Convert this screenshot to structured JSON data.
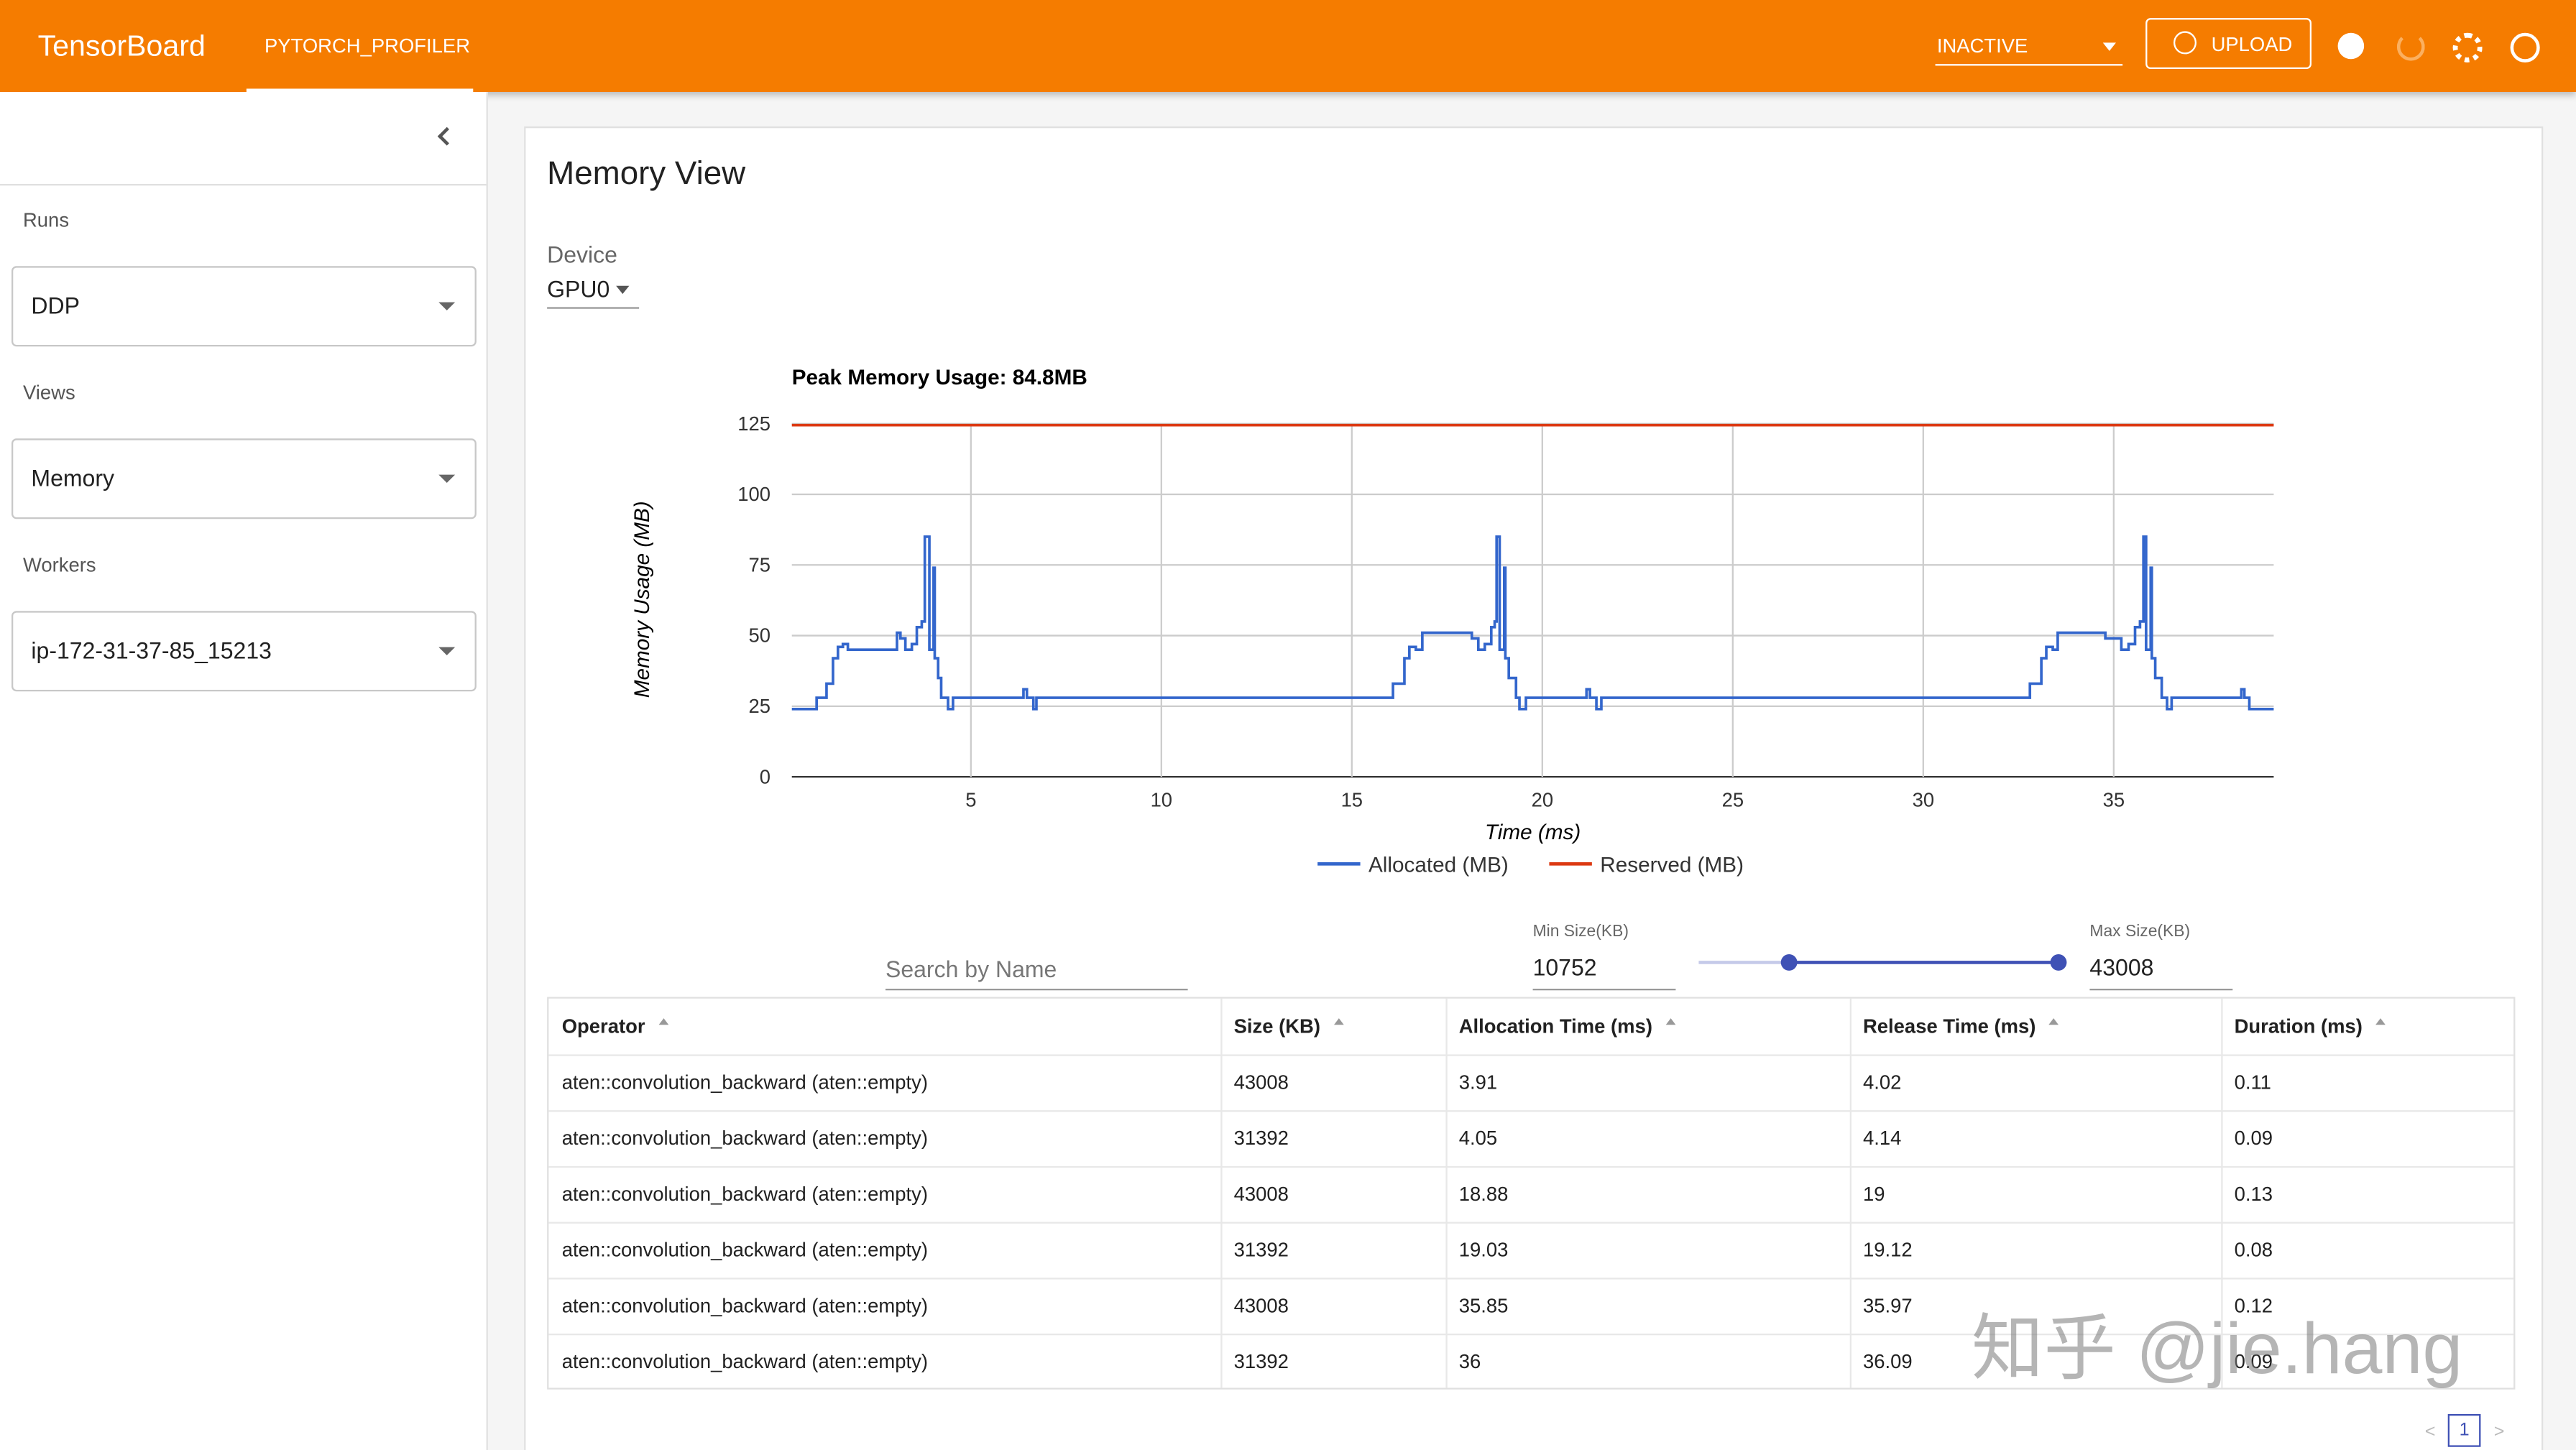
{
  "header": {
    "title": "TensorBoard",
    "tab": "PYTORCH_PROFILER",
    "status": "INACTIVE",
    "upload": "UPLOAD"
  },
  "sidebar": {
    "runs_label": "Runs",
    "runs_value": "DDP",
    "views_label": "Views",
    "views_value": "Memory",
    "workers_label": "Workers",
    "workers_value": "ip-172-31-37-85_15213"
  },
  "panel": {
    "title": "Memory View",
    "device_label": "Device",
    "device_value": "GPU0"
  },
  "chart_data": {
    "type": "line",
    "title": "Peak Memory Usage: 84.8MB",
    "x_label": "Time (ms)",
    "y_label": "Memory Usage (MB)",
    "step": true,
    "grid": true,
    "xlim": [
      0.3,
      39.2
    ],
    "xticks": [
      5,
      10,
      15,
      20,
      25,
      30,
      35
    ],
    "ylim": [
      0,
      125
    ],
    "yticks": [
      0,
      25,
      50,
      75,
      100,
      125
    ],
    "series": [
      {
        "name": "Allocated (MB)",
        "color": "#3366cc",
        "x": [
          0.3,
          0.95,
          1.21,
          1.38,
          1.51,
          1.64,
          1.77,
          3.06,
          3.15,
          3.28,
          3.45,
          3.58,
          3.71,
          3.79,
          3.91,
          4.02,
          4.05,
          4.14,
          4.22,
          4.4,
          4.53,
          6.38,
          6.47,
          6.64,
          6.72,
          16.08,
          16.38,
          16.51,
          16.68,
          16.85,
          18.15,
          18.32,
          18.49,
          18.66,
          18.75,
          18.8,
          18.88,
          19,
          19.03,
          19.12,
          19.31,
          19.4,
          19.57,
          21.16,
          21.25,
          21.42,
          21.55,
          32.8,
          33.1,
          33.23,
          33.4,
          33.53,
          34.78,
          35.2,
          35.39,
          35.56,
          35.69,
          35.78,
          35.85,
          35.97,
          36,
          36.09,
          36.26,
          36.4,
          36.52,
          38.35,
          38.43,
          38.56,
          38.65,
          39.2
        ],
        "values": [
          24,
          28,
          33,
          42,
          46,
          47,
          45,
          51,
          49,
          45,
          47,
          53,
          55,
          85,
          45,
          74,
          42,
          35,
          28,
          24,
          28,
          31,
          28,
          24,
          28,
          33,
          42,
          46,
          45,
          51,
          49,
          45,
          47,
          53,
          55,
          85,
          45,
          74,
          42,
          35,
          28,
          24,
          28,
          31,
          28,
          24,
          28,
          33,
          42,
          46,
          45,
          51,
          49,
          45,
          47,
          53,
          55,
          85,
          45,
          74,
          42,
          35,
          28,
          24,
          28,
          31,
          28,
          24,
          24,
          24
        ]
      },
      {
        "name": "Reserved (MB)",
        "color": "#dc3912",
        "x": [
          0.3,
          39.2
        ],
        "values": [
          124.5,
          124.5
        ]
      }
    ]
  },
  "filters": {
    "search_placeholder": "Search by Name",
    "min_label": "Min Size(KB)",
    "min_value": "10752",
    "max_label": "Max Size(KB)",
    "max_value": "43008"
  },
  "table": {
    "columns": [
      "Operator",
      "Size (KB)",
      "Allocation Time (ms)",
      "Release Time (ms)",
      "Duration (ms)"
    ],
    "rows": [
      [
        "aten::convolution_backward (aten::empty)",
        "43008",
        "3.91",
        "4.02",
        "0.11"
      ],
      [
        "aten::convolution_backward (aten::empty)",
        "31392",
        "4.05",
        "4.14",
        "0.09"
      ],
      [
        "aten::convolution_backward (aten::empty)",
        "43008",
        "18.88",
        "19",
        "0.13"
      ],
      [
        "aten::convolution_backward (aten::empty)",
        "31392",
        "19.03",
        "19.12",
        "0.08"
      ],
      [
        "aten::convolution_backward (aten::empty)",
        "43008",
        "35.85",
        "35.97",
        "0.12"
      ],
      [
        "aten::convolution_backward (aten::empty)",
        "31392",
        "36",
        "36.09",
        "0.09"
      ]
    ]
  },
  "pagination": {
    "page": "1"
  },
  "watermark": "知乎 @jie.hang"
}
